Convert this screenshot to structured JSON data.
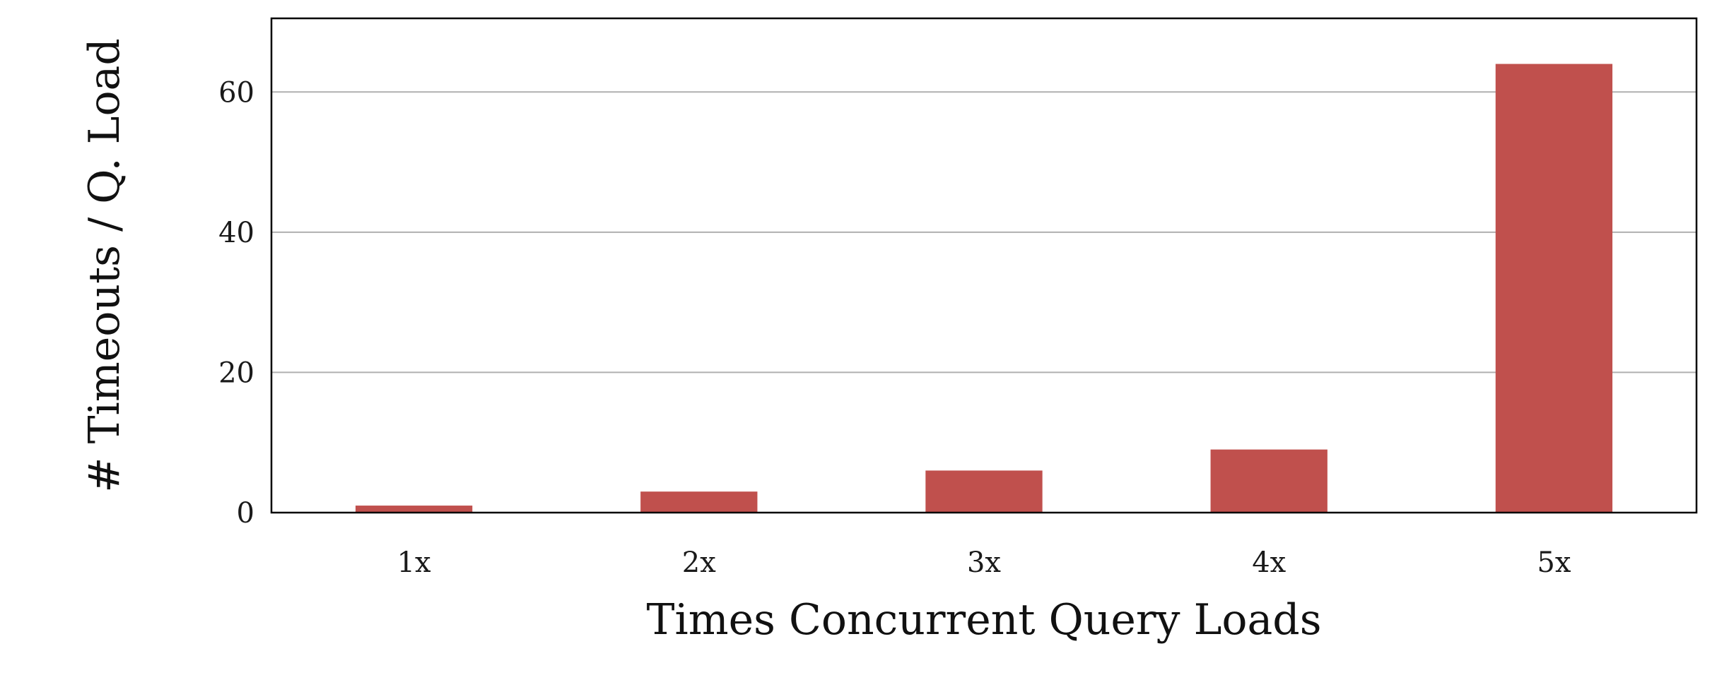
{
  "chart_data": {
    "type": "bar",
    "title": "",
    "xlabel": "Times Concurrent Query Loads",
    "ylabel": "# Timeouts / Q. Load",
    "categories": [
      "1x",
      "2x",
      "3x",
      "4x",
      "5x"
    ],
    "values": [
      1,
      3,
      6,
      9,
      64
    ],
    "ylim": [
      0,
      70.5
    ],
    "yticks": [
      0,
      20,
      40,
      60
    ],
    "ytick_labels": [
      "0",
      "20",
      "40",
      "60"
    ],
    "grid": "horizontal",
    "legend": "none",
    "bar_color": "#c0504d"
  }
}
